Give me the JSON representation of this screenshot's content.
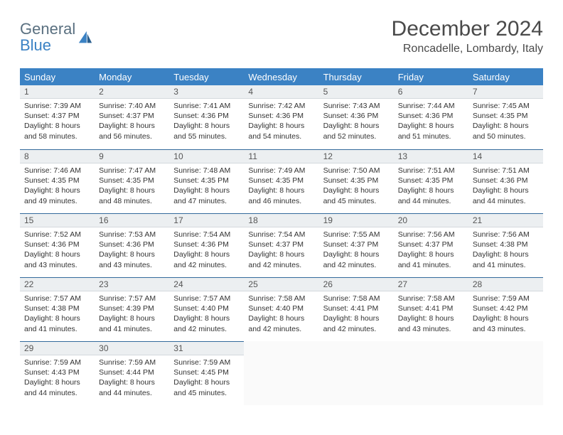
{
  "logo": {
    "line1": "General",
    "line2": "Blue"
  },
  "title": "December 2024",
  "location": "Roncadelle, Lombardy, Italy",
  "colors": {
    "header_bg": "#3b82c4",
    "header_text": "#ffffff",
    "daynum_bg": "#eceff1",
    "row_border": "#346a9c",
    "text": "#333333",
    "logo_general": "#5a7080",
    "logo_blue": "#3b82c4"
  },
  "day_headers": [
    "Sunday",
    "Monday",
    "Tuesday",
    "Wednesday",
    "Thursday",
    "Friday",
    "Saturday"
  ],
  "weeks": [
    [
      {
        "num": "1",
        "sunrise": "Sunrise: 7:39 AM",
        "sunset": "Sunset: 4:37 PM",
        "daylight": "Daylight: 8 hours and 58 minutes."
      },
      {
        "num": "2",
        "sunrise": "Sunrise: 7:40 AM",
        "sunset": "Sunset: 4:37 PM",
        "daylight": "Daylight: 8 hours and 56 minutes."
      },
      {
        "num": "3",
        "sunrise": "Sunrise: 7:41 AM",
        "sunset": "Sunset: 4:36 PM",
        "daylight": "Daylight: 8 hours and 55 minutes."
      },
      {
        "num": "4",
        "sunrise": "Sunrise: 7:42 AM",
        "sunset": "Sunset: 4:36 PM",
        "daylight": "Daylight: 8 hours and 54 minutes."
      },
      {
        "num": "5",
        "sunrise": "Sunrise: 7:43 AM",
        "sunset": "Sunset: 4:36 PM",
        "daylight": "Daylight: 8 hours and 52 minutes."
      },
      {
        "num": "6",
        "sunrise": "Sunrise: 7:44 AM",
        "sunset": "Sunset: 4:36 PM",
        "daylight": "Daylight: 8 hours and 51 minutes."
      },
      {
        "num": "7",
        "sunrise": "Sunrise: 7:45 AM",
        "sunset": "Sunset: 4:35 PM",
        "daylight": "Daylight: 8 hours and 50 minutes."
      }
    ],
    [
      {
        "num": "8",
        "sunrise": "Sunrise: 7:46 AM",
        "sunset": "Sunset: 4:35 PM",
        "daylight": "Daylight: 8 hours and 49 minutes."
      },
      {
        "num": "9",
        "sunrise": "Sunrise: 7:47 AM",
        "sunset": "Sunset: 4:35 PM",
        "daylight": "Daylight: 8 hours and 48 minutes."
      },
      {
        "num": "10",
        "sunrise": "Sunrise: 7:48 AM",
        "sunset": "Sunset: 4:35 PM",
        "daylight": "Daylight: 8 hours and 47 minutes."
      },
      {
        "num": "11",
        "sunrise": "Sunrise: 7:49 AM",
        "sunset": "Sunset: 4:35 PM",
        "daylight": "Daylight: 8 hours and 46 minutes."
      },
      {
        "num": "12",
        "sunrise": "Sunrise: 7:50 AM",
        "sunset": "Sunset: 4:35 PM",
        "daylight": "Daylight: 8 hours and 45 minutes."
      },
      {
        "num": "13",
        "sunrise": "Sunrise: 7:51 AM",
        "sunset": "Sunset: 4:35 PM",
        "daylight": "Daylight: 8 hours and 44 minutes."
      },
      {
        "num": "14",
        "sunrise": "Sunrise: 7:51 AM",
        "sunset": "Sunset: 4:36 PM",
        "daylight": "Daylight: 8 hours and 44 minutes."
      }
    ],
    [
      {
        "num": "15",
        "sunrise": "Sunrise: 7:52 AM",
        "sunset": "Sunset: 4:36 PM",
        "daylight": "Daylight: 8 hours and 43 minutes."
      },
      {
        "num": "16",
        "sunrise": "Sunrise: 7:53 AM",
        "sunset": "Sunset: 4:36 PM",
        "daylight": "Daylight: 8 hours and 43 minutes."
      },
      {
        "num": "17",
        "sunrise": "Sunrise: 7:54 AM",
        "sunset": "Sunset: 4:36 PM",
        "daylight": "Daylight: 8 hours and 42 minutes."
      },
      {
        "num": "18",
        "sunrise": "Sunrise: 7:54 AM",
        "sunset": "Sunset: 4:37 PM",
        "daylight": "Daylight: 8 hours and 42 minutes."
      },
      {
        "num": "19",
        "sunrise": "Sunrise: 7:55 AM",
        "sunset": "Sunset: 4:37 PM",
        "daylight": "Daylight: 8 hours and 42 minutes."
      },
      {
        "num": "20",
        "sunrise": "Sunrise: 7:56 AM",
        "sunset": "Sunset: 4:37 PM",
        "daylight": "Daylight: 8 hours and 41 minutes."
      },
      {
        "num": "21",
        "sunrise": "Sunrise: 7:56 AM",
        "sunset": "Sunset: 4:38 PM",
        "daylight": "Daylight: 8 hours and 41 minutes."
      }
    ],
    [
      {
        "num": "22",
        "sunrise": "Sunrise: 7:57 AM",
        "sunset": "Sunset: 4:38 PM",
        "daylight": "Daylight: 8 hours and 41 minutes."
      },
      {
        "num": "23",
        "sunrise": "Sunrise: 7:57 AM",
        "sunset": "Sunset: 4:39 PM",
        "daylight": "Daylight: 8 hours and 41 minutes."
      },
      {
        "num": "24",
        "sunrise": "Sunrise: 7:57 AM",
        "sunset": "Sunset: 4:40 PM",
        "daylight": "Daylight: 8 hours and 42 minutes."
      },
      {
        "num": "25",
        "sunrise": "Sunrise: 7:58 AM",
        "sunset": "Sunset: 4:40 PM",
        "daylight": "Daylight: 8 hours and 42 minutes."
      },
      {
        "num": "26",
        "sunrise": "Sunrise: 7:58 AM",
        "sunset": "Sunset: 4:41 PM",
        "daylight": "Daylight: 8 hours and 42 minutes."
      },
      {
        "num": "27",
        "sunrise": "Sunrise: 7:58 AM",
        "sunset": "Sunset: 4:41 PM",
        "daylight": "Daylight: 8 hours and 43 minutes."
      },
      {
        "num": "28",
        "sunrise": "Sunrise: 7:59 AM",
        "sunset": "Sunset: 4:42 PM",
        "daylight": "Daylight: 8 hours and 43 minutes."
      }
    ],
    [
      {
        "num": "29",
        "sunrise": "Sunrise: 7:59 AM",
        "sunset": "Sunset: 4:43 PM",
        "daylight": "Daylight: 8 hours and 44 minutes."
      },
      {
        "num": "30",
        "sunrise": "Sunrise: 7:59 AM",
        "sunset": "Sunset: 4:44 PM",
        "daylight": "Daylight: 8 hours and 44 minutes."
      },
      {
        "num": "31",
        "sunrise": "Sunrise: 7:59 AM",
        "sunset": "Sunset: 4:45 PM",
        "daylight": "Daylight: 8 hours and 45 minutes."
      },
      null,
      null,
      null,
      null
    ]
  ]
}
